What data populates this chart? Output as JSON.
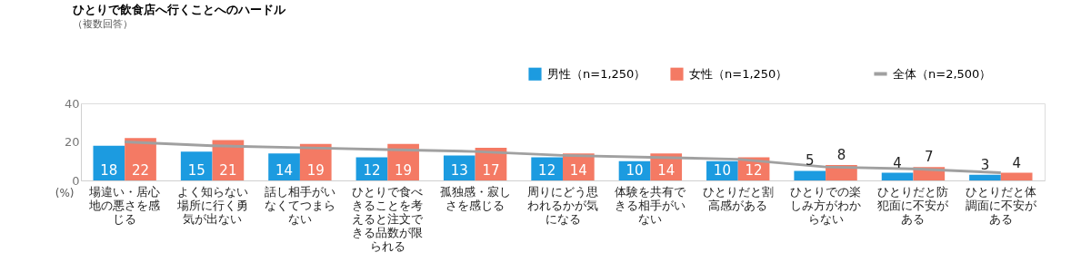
{
  "chart_data": {
    "type": "bar",
    "title": "ひとりで飲食店へ行くことへのハードル",
    "subtitle": "（複数回答）",
    "ylabel": "(%)",
    "categories": [
      "場違い・居心地の悪さを感じる",
      "よく知らない場所に行く勇気が出ない",
      "話し相手がいなくてつまらない",
      "ひとりで食べきることを考えると注文できる品数が限られる",
      "孤独感・寂しさを感じる",
      "周りにどう思われるかが気になる",
      "体験を共有できる相手がいない",
      "ひとりだと割高感がある",
      "ひとりでの楽しみ方がわからない",
      "ひとりだと防犯面に不安がある",
      "ひとりだと体調面に不安がある"
    ],
    "series": [
      {
        "name": "男性（n=1,250）",
        "type": "bar",
        "color": "#1c9be0",
        "values": [
          18,
          15,
          14,
          12,
          13,
          12,
          10,
          10,
          5,
          4,
          3
        ],
        "value_labels": [
          "18",
          "15",
          "14",
          "12",
          "13",
          "12",
          "10",
          "10",
          "5",
          "4",
          "3"
        ]
      },
      {
        "name": "女性（n=1,250）",
        "type": "bar",
        "color": "#f47a64",
        "values": [
          22,
          21,
          19,
          19,
          17,
          14,
          14,
          12,
          8,
          7,
          4
        ],
        "value_labels": [
          "22",
          "21",
          "19",
          "19",
          "17",
          "14",
          "14",
          "12",
          "8",
          "7",
          "4"
        ]
      },
      {
        "name": "全体（n=2,500）",
        "type": "line",
        "color": "#a0a0a0",
        "values": [
          20,
          18,
          17,
          16,
          15,
          13,
          12,
          11,
          7,
          6,
          4
        ]
      }
    ],
    "ylim": [
      0,
      40
    ],
    "yticks": [
      0,
      20,
      40
    ],
    "grid": false,
    "legend": "top right"
  }
}
